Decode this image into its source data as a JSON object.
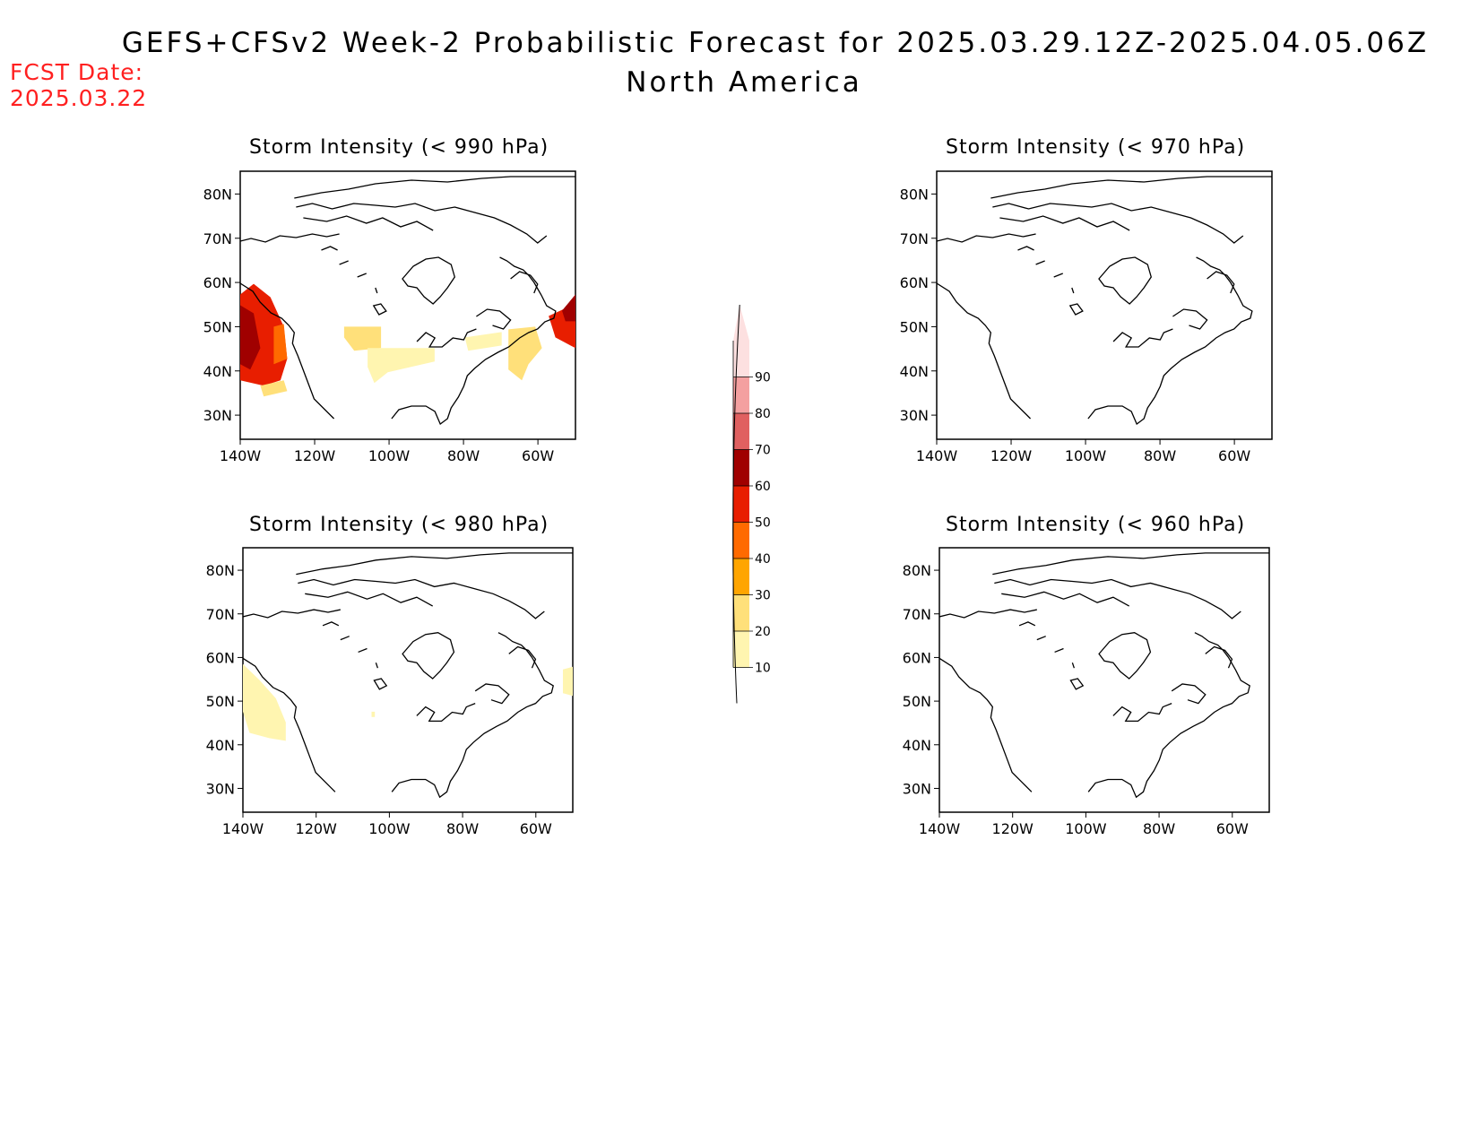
{
  "header": {
    "title_line1": "GEFS+CFSv2 Week-2 Probabilistic Forecast for 2025.03.29.12Z-2025.04.05.06Z",
    "title_line2": "North America",
    "fcst_label": "FCST Date:",
    "fcst_value": "2025.03.22"
  },
  "panels": [
    {
      "id": "p990",
      "title": "Storm Intensity (< 990 hPa)"
    },
    {
      "id": "p970",
      "title": "Storm Intensity (< 970 hPa)"
    },
    {
      "id": "p980",
      "title": "Storm Intensity (< 980 hPa)"
    },
    {
      "id": "p960",
      "title": "Storm Intensity (< 960 hPa)"
    }
  ],
  "axes": {
    "lat_labels": [
      "80N",
      "70N",
      "60N",
      "50N",
      "40N",
      "30N"
    ],
    "lon_labels": [
      "140W",
      "120W",
      "100W",
      "80W",
      "60W"
    ]
  },
  "colorbar": {
    "levels": [
      "10",
      "20",
      "30",
      "40",
      "50",
      "60",
      "70",
      "80",
      "90"
    ],
    "colors": [
      "#fff5b0",
      "#ffe07a",
      "#ffa500",
      "#ff6a00",
      "#e81e00",
      "#a00000",
      "#e06060",
      "#f4a0a0",
      "#fde0e0"
    ]
  }
}
